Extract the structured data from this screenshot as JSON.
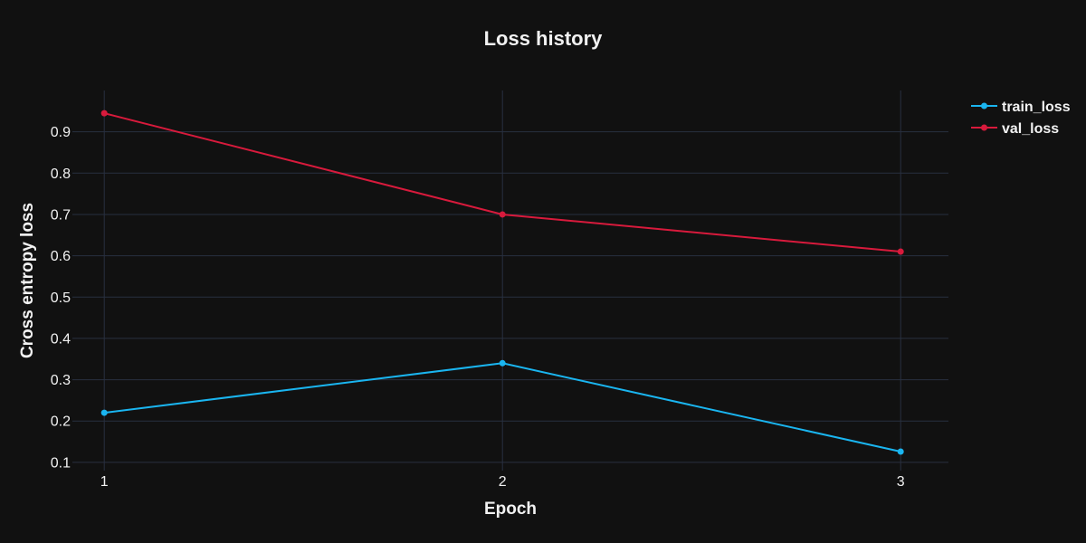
{
  "chart_data": {
    "type": "line",
    "title": "Loss history",
    "xlabel": "Epoch",
    "ylabel": "Cross entropy loss",
    "x": [
      1,
      2,
      3
    ],
    "xlim": [
      0.92,
      3.12
    ],
    "ylim": [
      0.1,
      0.9
    ],
    "yrange": [
      0.08,
      1.0
    ],
    "yticks": [
      0.1,
      0.2,
      0.3,
      0.4,
      0.5,
      0.6,
      0.7,
      0.8,
      0.9
    ],
    "grid": true,
    "legend_position": "top-right",
    "series": [
      {
        "name": "train_loss",
        "color": "#1ab5f0",
        "values": [
          0.22,
          0.34,
          0.126
        ]
      },
      {
        "name": "val_loss",
        "color": "#d81a3c",
        "values": [
          0.945,
          0.7,
          0.61
        ]
      }
    ]
  }
}
